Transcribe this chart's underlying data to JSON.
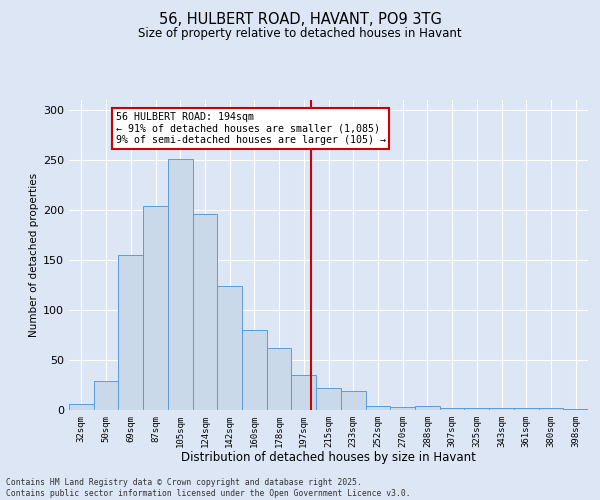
{
  "title_line1": "56, HULBERT ROAD, HAVANT, PO9 3TG",
  "title_line2": "Size of property relative to detached houses in Havant",
  "xlabel": "Distribution of detached houses by size in Havant",
  "ylabel": "Number of detached properties",
  "bar_labels": [
    "32sqm",
    "50sqm",
    "69sqm",
    "87sqm",
    "105sqm",
    "124sqm",
    "142sqm",
    "160sqm",
    "178sqm",
    "197sqm",
    "215sqm",
    "233sqm",
    "252sqm",
    "270sqm",
    "288sqm",
    "307sqm",
    "325sqm",
    "343sqm",
    "361sqm",
    "380sqm",
    "398sqm"
  ],
  "bar_values": [
    6,
    29,
    155,
    204,
    251,
    196,
    124,
    80,
    62,
    35,
    22,
    19,
    4,
    3,
    4,
    2,
    2,
    2,
    2,
    2,
    1
  ],
  "bar_color": "#c9d9ea",
  "bar_edge_color": "#5b9bd5",
  "vline_x": 9.3,
  "vline_color": "#cc0000",
  "annotation_text": "56 HULBERT ROAD: 194sqm\n← 91% of detached houses are smaller (1,085)\n9% of semi-detached houses are larger (105) →",
  "annotation_box_color": "#ffffff",
  "annotation_box_edge": "#cc0000",
  "ylim": [
    0,
    310
  ],
  "yticks": [
    0,
    50,
    100,
    150,
    200,
    250,
    300
  ],
  "footer_text": "Contains HM Land Registry data © Crown copyright and database right 2025.\nContains public sector information licensed under the Open Government Licence v3.0.",
  "bg_color": "#dce6f5",
  "grid_color": "#ffffff"
}
